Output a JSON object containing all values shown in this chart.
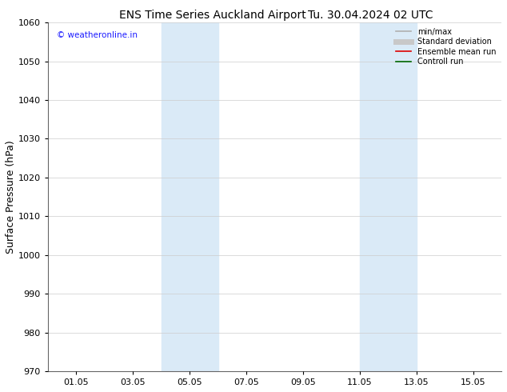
{
  "title": "ENS Time Series Auckland Airport",
  "title2": "Tu. 30.04.2024 02 UTC",
  "ylabel": "Surface Pressure (hPa)",
  "ylim": [
    970,
    1060
  ],
  "yticks": [
    970,
    980,
    990,
    1000,
    1010,
    1020,
    1030,
    1040,
    1050,
    1060
  ],
  "xtick_labels": [
    "01.05",
    "03.05",
    "05.05",
    "07.05",
    "09.05",
    "11.05",
    "13.05",
    "15.05"
  ],
  "xtick_positions": [
    1,
    3,
    5,
    7,
    9,
    11,
    13,
    15
  ],
  "xlim": [
    0,
    16
  ],
  "shaded_bands": [
    {
      "xmin": 4.0,
      "xmax": 6.0,
      "color": "#daeaf7"
    },
    {
      "xmin": 11.0,
      "xmax": 13.0,
      "color": "#daeaf7"
    }
  ],
  "watermark": "© weatheronline.in",
  "watermark_color": "#1a1aff",
  "legend_items": [
    {
      "label": "min/max",
      "color": "#b0b0b0",
      "lw": 1.2
    },
    {
      "label": "Standard deviation",
      "color": "#c8c8c8",
      "lw": 5
    },
    {
      "label": "Ensemble mean run",
      "color": "#dd0000",
      "lw": 1.2
    },
    {
      "label": "Controll run",
      "color": "#006600",
      "lw": 1.2
    }
  ],
  "bg_color": "#ffffff",
  "grid_color": "#cccccc",
  "title_fontsize": 10,
  "tick_fontsize": 8,
  "ylabel_fontsize": 9,
  "legend_fontsize": 7
}
